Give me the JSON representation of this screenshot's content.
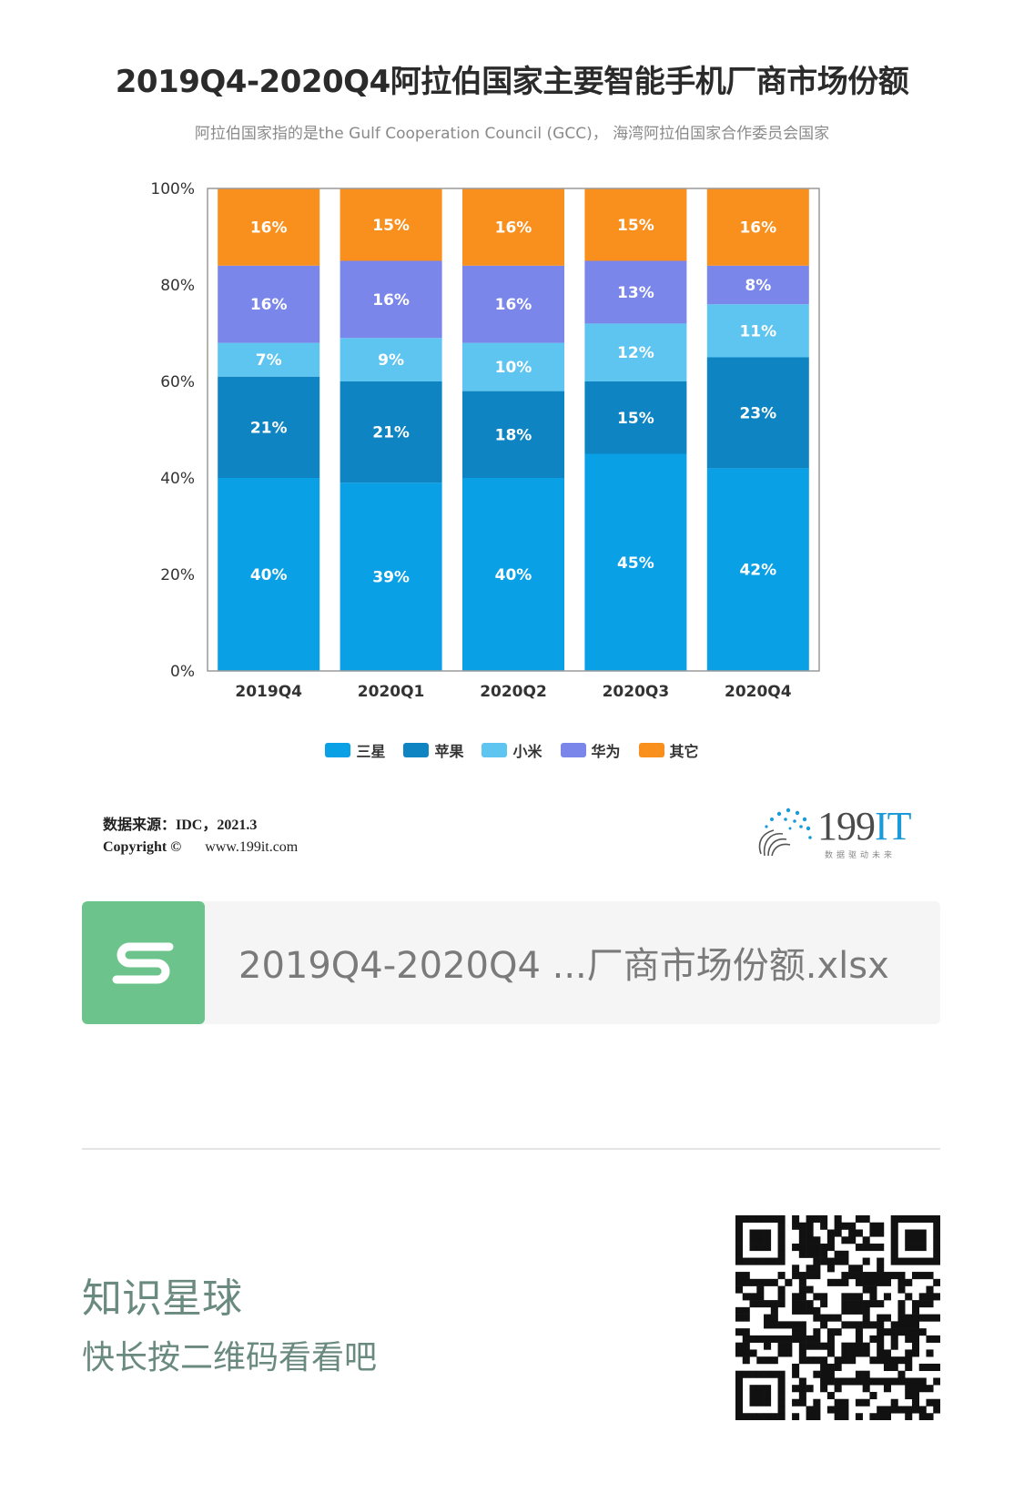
{
  "header": {
    "title": "2019Q4-2020Q4阿拉伯国家主要智能手机厂商市场份额",
    "subtitle": "阿拉伯国家指的是the Gulf Cooperation Council (GCC)， 海湾阿拉伯国家合作委员会国家"
  },
  "chart_data": {
    "type": "bar",
    "stacked": true,
    "normalized": true,
    "title": "2019Q4-2020Q4阿拉伯国家主要智能手机厂商市场份额",
    "categories": [
      "2019Q4",
      "2020Q1",
      "2020Q2",
      "2020Q3",
      "2020Q4"
    ],
    "y_ticks": [
      "0%",
      "20%",
      "40%",
      "60%",
      "80%",
      "100%"
    ],
    "ylim": [
      0,
      100
    ],
    "grid": false,
    "legend_position": "bottom",
    "series": [
      {
        "name": "三星",
        "color": "#0aa0e6",
        "values": [
          40,
          39,
          40,
          45,
          42
        ],
        "labels": [
          "40%",
          "39%",
          "40%",
          "45%",
          "42%"
        ]
      },
      {
        "name": "苹果",
        "color": "#0e84c2",
        "values": [
          21,
          21,
          18,
          15,
          23
        ],
        "labels": [
          "21%",
          "21%",
          "18%",
          "15%",
          "23%"
        ]
      },
      {
        "name": "小米",
        "color": "#5ec4f0",
        "values": [
          7,
          9,
          10,
          12,
          11
        ],
        "labels": [
          "7%",
          "9%",
          "10%",
          "12%",
          "11%"
        ]
      },
      {
        "name": "华为",
        "color": "#7a86ea",
        "values": [
          16,
          16,
          16,
          13,
          8
        ],
        "labels": [
          "16%",
          "16%",
          "16%",
          "13%",
          "8%"
        ]
      },
      {
        "name": "其它",
        "color": "#f98f1c",
        "values": [
          16,
          15,
          16,
          15,
          16
        ],
        "labels": [
          "16%",
          "15%",
          "16%",
          "15%",
          "16%"
        ]
      }
    ]
  },
  "footer": {
    "source": "数据来源：IDC，2021.3",
    "copyright_label": "Copyright ©",
    "copyright_url": "www.199it.com",
    "logo_text": "199",
    "logo_it": "IT",
    "logo_tagline": "数据驱动未来"
  },
  "file_card": {
    "file_name": "2019Q4-2020Q4 ...厂商市场份额.xlsx",
    "icon": "spreadsheet-s-icon",
    "icon_color": "#6cc48c"
  },
  "promo": {
    "title": "知识星球",
    "subtitle": "快长按二维码看看吧"
  }
}
